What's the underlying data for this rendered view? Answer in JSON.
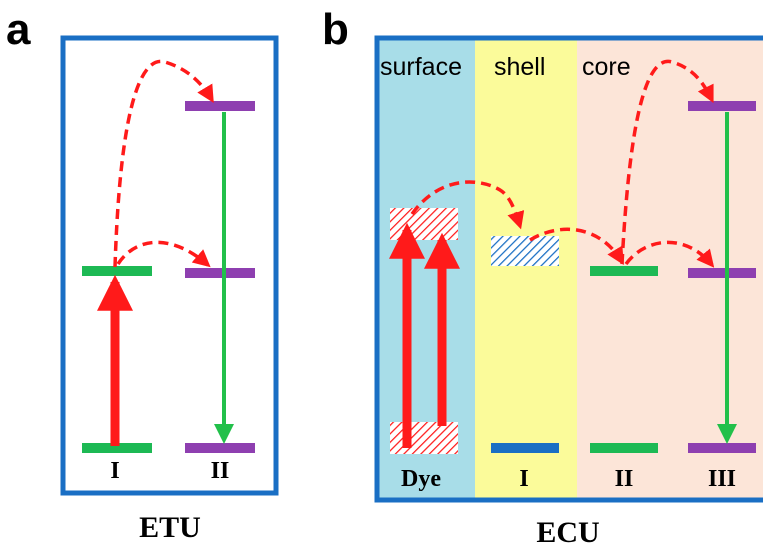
{
  "panel_a": {
    "letter": "a",
    "caption": "ETU",
    "level_labels": [
      "I",
      "II"
    ]
  },
  "panel_b": {
    "letter": "b",
    "caption": "ECU",
    "regions": [
      "surface",
      "shell",
      "core"
    ],
    "level_labels": [
      "Dye",
      "I",
      "II",
      "III"
    ]
  },
  "colors": {
    "frame": "#1a6fc4",
    "surface_bg": "#a8dde8",
    "shell_bg": "#fbfb9a",
    "core_bg": "#fce5d8",
    "green_level": "#1db954",
    "purple_level": "#8e3fb0",
    "blue_level": "#1a6fc4",
    "red_arrow": "#ff1a1a",
    "green_arrow": "#22c04a",
    "dashed_arrow": "#ff1a1a"
  }
}
